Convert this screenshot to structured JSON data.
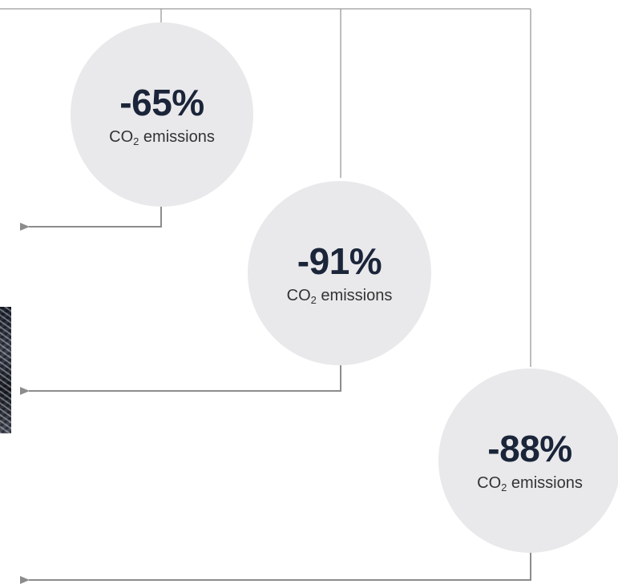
{
  "bubbles": [
    {
      "value": "-65%",
      "label_main": "CO",
      "label_sub": "2",
      "label_rest": " emissions"
    },
    {
      "value": "-91%",
      "label_main": "CO",
      "label_sub": "2",
      "label_rest": " emissions"
    },
    {
      "value": "-88%",
      "label_main": "CO",
      "label_sub": "2",
      "label_rest": " emissions"
    }
  ],
  "colors": {
    "bubble_fill": "#e9e9ec",
    "value_text": "#1b2539",
    "connector": "#9a9a9a",
    "arrow": "#8c8c8c"
  }
}
